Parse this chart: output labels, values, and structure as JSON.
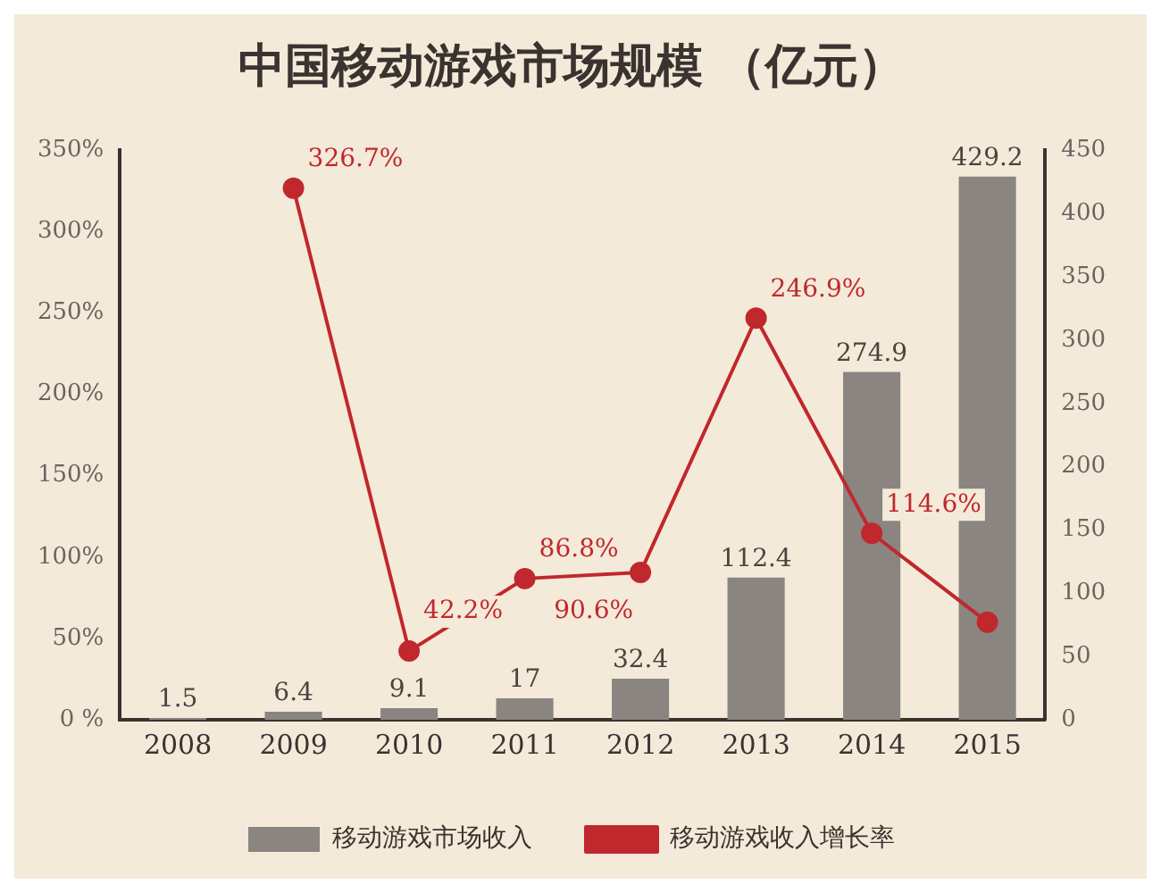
{
  "chart_data": {
    "type": "bar",
    "title": "中国移动游戏市场规模 （亿元）",
    "categories": [
      "2008",
      "2009",
      "2010",
      "2011",
      "2012",
      "2013",
      "2014",
      "2015"
    ],
    "series": [
      {
        "name": "移动游戏市场收入",
        "axis": "y2",
        "color": "#8a8580",
        "values": [
          1.5,
          6.4,
          9.1,
          17,
          32.4,
          112.4,
          274.9,
          429.2
        ],
        "value_labels": [
          "1.5",
          "6.4",
          "9.1",
          "17",
          "32.4",
          "112.4",
          "274.9",
          "429.2"
        ]
      },
      {
        "name": "移动游戏收入增长率",
        "type": "line",
        "axis": "y",
        "color": "#c0282d",
        "values": [
          null,
          326.7,
          42.2,
          86.8,
          90.6,
          246.9,
          114.6,
          60
        ],
        "value_labels": [
          null,
          "326.7%",
          "42.2%",
          "86.8%",
          "90.6%",
          "246.9%",
          "114.6%",
          null
        ]
      }
    ],
    "ylim": [
      0,
      350
    ],
    "yticks": [
      {
        "value": 0,
        "label": "0 %"
      },
      {
        "value": 50,
        "label": "50%"
      },
      {
        "value": 100,
        "label": "100%"
      },
      {
        "value": 150,
        "label": "150%"
      },
      {
        "value": 200,
        "label": "200%"
      },
      {
        "value": 250,
        "label": "250%"
      },
      {
        "value": 300,
        "label": "300%"
      },
      {
        "value": 350,
        "label": "350%"
      }
    ],
    "y2lim": [
      0,
      450
    ],
    "y2ticks": [
      0,
      50,
      100,
      150,
      200,
      250,
      300,
      350,
      400,
      450
    ],
    "grid": false,
    "legend": "bottom",
    "marker": "circle",
    "line_style": "solid"
  }
}
